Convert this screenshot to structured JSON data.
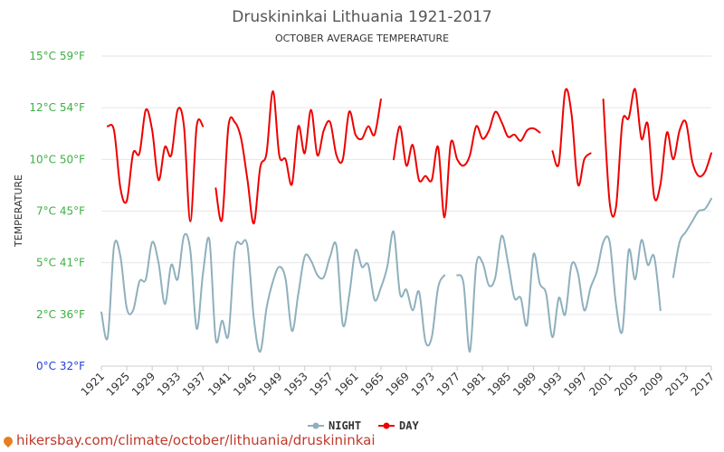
{
  "chart_data": {
    "type": "line",
    "title": "Druskininkai Lithuania 1921-2017",
    "subtitle": "OCTOBER AVERAGE TEMPERATURE",
    "ylabel": "TEMPERATURE",
    "xlim": [
      1921,
      2017
    ],
    "ylim": [
      0,
      15
    ],
    "y_ticks": [
      {
        "value": 0,
        "label": "0°C 32°F",
        "color": "#1e3fd6"
      },
      {
        "value": 2.5,
        "label": "2°C 36°F",
        "color": "#3cb043"
      },
      {
        "value": 5,
        "label": "5°C 41°F",
        "color": "#3cb043"
      },
      {
        "value": 7.5,
        "label": "7°C 45°F",
        "color": "#3cb043"
      },
      {
        "value": 10,
        "label": "10°C 50°F",
        "color": "#3cb043"
      },
      {
        "value": 12.5,
        "label": "12°C 54°F",
        "color": "#3cb043"
      },
      {
        "value": 15,
        "label": "15°C 59°F",
        "color": "#3cb043"
      }
    ],
    "x_ticks": [
      1921,
      1925,
      1929,
      1933,
      1937,
      1941,
      1945,
      1949,
      1953,
      1957,
      1961,
      1965,
      1969,
      1973,
      1977,
      1981,
      1985,
      1989,
      1993,
      1997,
      2001,
      2005,
      2009,
      2013,
      2017
    ],
    "grid": true,
    "legend_position": "bottom",
    "series": [
      {
        "name": "NIGHT",
        "color": "#8fb0bd",
        "values": [
          [
            1921,
            2.6
          ],
          [
            1922,
            1.4
          ],
          [
            1923,
            5.8
          ],
          [
            1924,
            5.3
          ],
          [
            1925,
            2.8
          ],
          [
            1926,
            2.7
          ],
          [
            1927,
            4.1
          ],
          [
            1928,
            4.2
          ],
          [
            1929,
            6.0
          ],
          [
            1930,
            5.0
          ],
          [
            1931,
            3.0
          ],
          [
            1932,
            4.9
          ],
          [
            1933,
            4.2
          ],
          [
            1934,
            6.3
          ],
          [
            1935,
            5.6
          ],
          [
            1936,
            1.8
          ],
          [
            1937,
            4.5
          ],
          [
            1938,
            6.1
          ],
          [
            1939,
            1.3
          ],
          [
            1940,
            2.2
          ],
          [
            1941,
            1.5
          ],
          [
            1942,
            5.6
          ],
          [
            1943,
            5.9
          ],
          [
            1944,
            5.8
          ],
          [
            1945,
            2.3
          ],
          [
            1946,
            0.7
          ],
          [
            1947,
            2.8
          ],
          [
            1948,
            4.1
          ],
          [
            1949,
            4.8
          ],
          [
            1950,
            4.2
          ],
          [
            1951,
            1.7
          ],
          [
            1952,
            3.5
          ],
          [
            1953,
            5.3
          ],
          [
            1954,
            5.1
          ],
          [
            1955,
            4.4
          ],
          [
            1956,
            4.3
          ],
          [
            1957,
            5.3
          ],
          [
            1958,
            5.8
          ],
          [
            1959,
            2.0
          ],
          [
            1960,
            3.4
          ],
          [
            1961,
            5.6
          ],
          [
            1962,
            4.8
          ],
          [
            1963,
            4.9
          ],
          [
            1964,
            3.2
          ],
          [
            1965,
            3.8
          ],
          [
            1966,
            4.8
          ],
          [
            1967,
            6.5
          ],
          [
            1968,
            3.5
          ],
          [
            1969,
            3.7
          ],
          [
            1970,
            2.7
          ],
          [
            1971,
            3.6
          ],
          [
            1972,
            1.2
          ],
          [
            1973,
            1.4
          ],
          [
            1974,
            3.8
          ],
          [
            1975,
            4.4
          ],
          [
            1977,
            4.4
          ],
          [
            1978,
            4.0
          ],
          [
            1979,
            0.7
          ],
          [
            1980,
            4.9
          ],
          [
            1981,
            5.0
          ],
          [
            1982,
            3.9
          ],
          [
            1983,
            4.3
          ],
          [
            1984,
            6.3
          ],
          [
            1985,
            5.0
          ],
          [
            1986,
            3.3
          ],
          [
            1987,
            3.3
          ],
          [
            1988,
            2.0
          ],
          [
            1989,
            5.4
          ],
          [
            1990,
            4.0
          ],
          [
            1991,
            3.5
          ],
          [
            1992,
            1.4
          ],
          [
            1993,
            3.3
          ],
          [
            1994,
            2.5
          ],
          [
            1995,
            4.9
          ],
          [
            1996,
            4.5
          ],
          [
            1997,
            2.7
          ],
          [
            1998,
            3.8
          ],
          [
            1999,
            4.6
          ],
          [
            2000,
            6.0
          ],
          [
            2001,
            6.0
          ],
          [
            2002,
            3.0
          ],
          [
            2003,
            1.7
          ],
          [
            2004,
            5.6
          ],
          [
            2005,
            4.2
          ],
          [
            2006,
            6.1
          ],
          [
            2007,
            4.9
          ],
          [
            2008,
            5.3
          ],
          [
            2009,
            2.7
          ],
          [
            2011,
            4.3
          ],
          [
            2012,
            6.0
          ],
          [
            2013,
            6.5
          ],
          [
            2014,
            7.0
          ],
          [
            2015,
            7.5
          ],
          [
            2016,
            7.6
          ],
          [
            2017,
            8.1
          ]
        ]
      },
      {
        "name": "DAY",
        "color": "#ee0000",
        "values": [
          [
            1922,
            11.6
          ],
          [
            1923,
            11.4
          ],
          [
            1924,
            8.6
          ],
          [
            1925,
            8.0
          ],
          [
            1926,
            10.3
          ],
          [
            1927,
            10.3
          ],
          [
            1928,
            12.4
          ],
          [
            1929,
            11.4
          ],
          [
            1930,
            9.0
          ],
          [
            1931,
            10.6
          ],
          [
            1932,
            10.2
          ],
          [
            1933,
            12.4
          ],
          [
            1934,
            11.6
          ],
          [
            1935,
            7.0
          ],
          [
            1936,
            11.6
          ],
          [
            1937,
            11.6
          ],
          [
            1939,
            8.6
          ],
          [
            1940,
            7.1
          ],
          [
            1941,
            11.6
          ],
          [
            1942,
            11.8
          ],
          [
            1943,
            11.0
          ],
          [
            1944,
            9.0
          ],
          [
            1945,
            6.9
          ],
          [
            1946,
            9.6
          ],
          [
            1947,
            10.3
          ],
          [
            1948,
            13.3
          ],
          [
            1949,
            10.2
          ],
          [
            1950,
            10.0
          ],
          [
            1951,
            8.8
          ],
          [
            1952,
            11.6
          ],
          [
            1953,
            10.3
          ],
          [
            1954,
            12.4
          ],
          [
            1955,
            10.2
          ],
          [
            1956,
            11.4
          ],
          [
            1957,
            11.8
          ],
          [
            1958,
            10.2
          ],
          [
            1959,
            10.0
          ],
          [
            1960,
            12.3
          ],
          [
            1961,
            11.2
          ],
          [
            1962,
            11.0
          ],
          [
            1963,
            11.6
          ],
          [
            1964,
            11.2
          ],
          [
            1965,
            12.9
          ],
          [
            1967,
            10.0
          ],
          [
            1968,
            11.6
          ],
          [
            1969,
            9.7
          ],
          [
            1970,
            10.7
          ],
          [
            1971,
            9.0
          ],
          [
            1972,
            9.2
          ],
          [
            1973,
            9.0
          ],
          [
            1974,
            10.6
          ],
          [
            1975,
            7.2
          ],
          [
            1976,
            10.8
          ],
          [
            1977,
            10.0
          ],
          [
            1978,
            9.7
          ],
          [
            1979,
            10.2
          ],
          [
            1980,
            11.6
          ],
          [
            1981,
            11.0
          ],
          [
            1982,
            11.4
          ],
          [
            1983,
            12.3
          ],
          [
            1984,
            11.8
          ],
          [
            1985,
            11.1
          ],
          [
            1986,
            11.2
          ],
          [
            1987,
            10.9
          ],
          [
            1988,
            11.4
          ],
          [
            1989,
            11.5
          ],
          [
            1990,
            11.3
          ],
          [
            1992,
            10.4
          ],
          [
            1993,
            9.8
          ],
          [
            1994,
            13.3
          ],
          [
            1995,
            12.2
          ],
          [
            1996,
            8.8
          ],
          [
            1997,
            10.0
          ],
          [
            1998,
            10.3
          ],
          [
            2000,
            12.9
          ],
          [
            2001,
            7.9
          ],
          [
            2002,
            7.7
          ],
          [
            2003,
            11.8
          ],
          [
            2004,
            12.0
          ],
          [
            2005,
            13.4
          ],
          [
            2006,
            11.0
          ],
          [
            2007,
            11.7
          ],
          [
            2008,
            8.2
          ],
          [
            2009,
            8.8
          ],
          [
            2010,
            11.3
          ],
          [
            2011,
            10.0
          ],
          [
            2012,
            11.4
          ],
          [
            2013,
            11.8
          ],
          [
            2014,
            9.9
          ],
          [
            2015,
            9.2
          ],
          [
            2016,
            9.4
          ],
          [
            2017,
            10.3
          ]
        ]
      }
    ]
  },
  "footer": {
    "text": "hikersbay.com/climate/october/lithuania/druskininkai"
  }
}
